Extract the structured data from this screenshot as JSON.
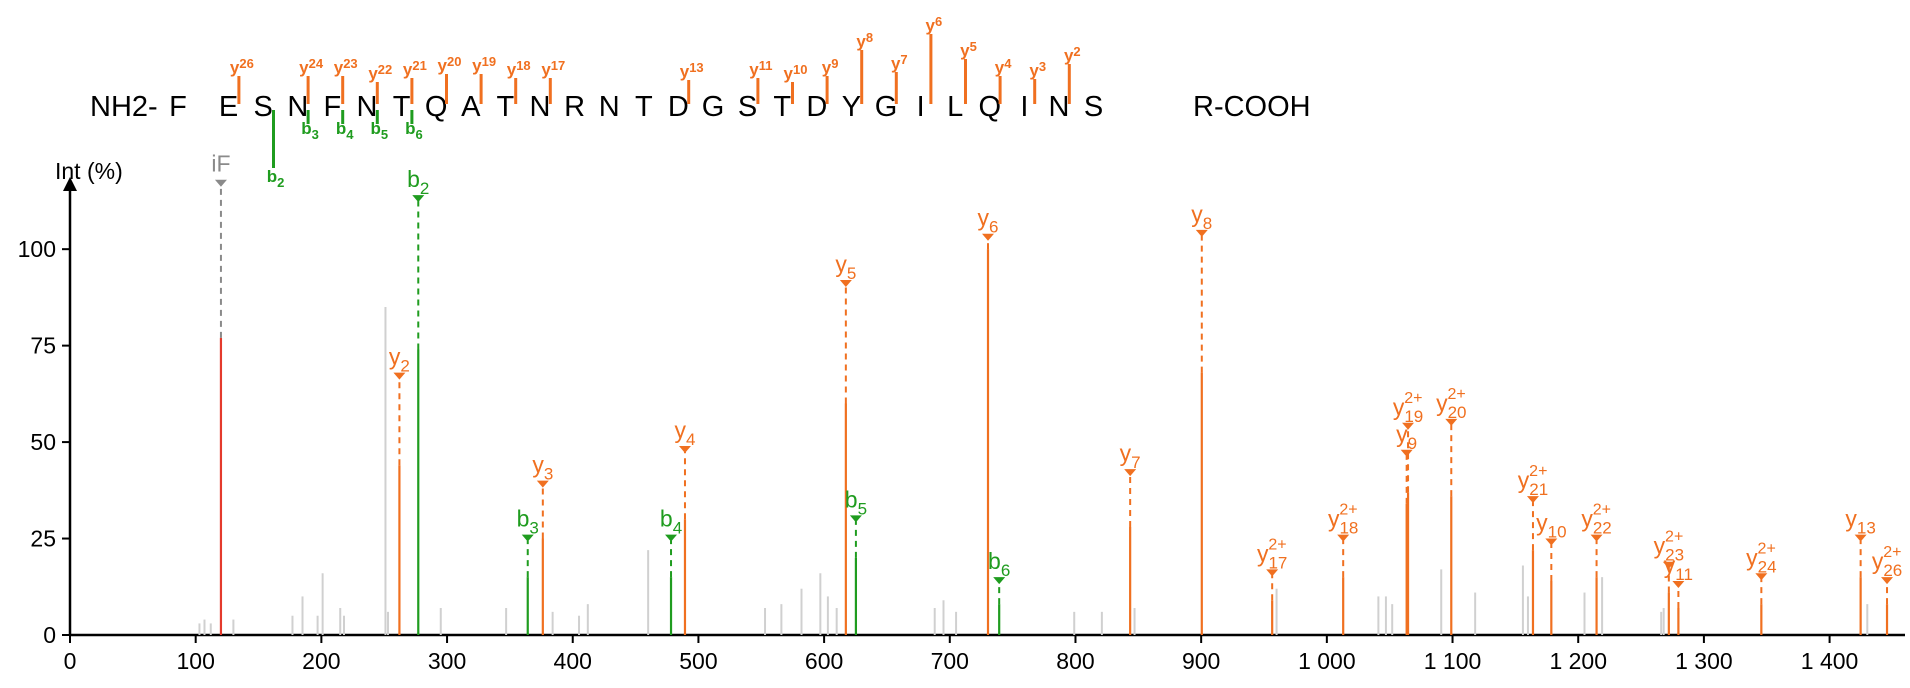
{
  "colors": {
    "y": "#f07020",
    "b": "#1f9c1f",
    "immonium": "#e43a2c",
    "unassigned": "#d0d0d0",
    "axis": "#000000",
    "label_gray": "#8a8a8a"
  },
  "sequence": {
    "n_term": "NH2-",
    "c_term": "R-COOH",
    "residues": [
      "F",
      "E",
      "S",
      "N",
      "F",
      "N",
      "T",
      "Q",
      "A",
      "T",
      "N",
      "R",
      "N",
      "T",
      "D",
      "G",
      "S",
      "T",
      "D",
      "Y",
      "G",
      "I",
      "L",
      "Q",
      "I",
      "N",
      "S"
    ],
    "y_marks": [
      {
        "after": 1,
        "label": "y",
        "n": "26"
      },
      {
        "after": 3,
        "label": "y",
        "n": "24"
      },
      {
        "after": 4,
        "label": "y",
        "n": "23"
      },
      {
        "after": 5,
        "label": "y",
        "n": "22"
      },
      {
        "after": 6,
        "label": "y",
        "n": "21"
      },
      {
        "after": 7,
        "label": "y",
        "n": "20"
      },
      {
        "after": 8,
        "label": "y",
        "n": "19"
      },
      {
        "after": 9,
        "label": "y",
        "n": "18"
      },
      {
        "after": 10,
        "label": "y",
        "n": "17"
      },
      {
        "after": 14,
        "label": "y",
        "n": "13"
      },
      {
        "after": 16,
        "label": "y",
        "n": "11"
      },
      {
        "after": 17,
        "label": "y",
        "n": "10"
      },
      {
        "after": 18,
        "label": "y",
        "n": "9"
      },
      {
        "after": 19,
        "label": "y",
        "n": "8"
      },
      {
        "after": 20,
        "label": "y",
        "n": "7"
      },
      {
        "after": 21,
        "label": "y",
        "n": "6"
      },
      {
        "after": 22,
        "label": "y",
        "n": "5"
      },
      {
        "after": 23,
        "label": "y",
        "n": "4"
      },
      {
        "after": 24,
        "label": "y",
        "n": "3"
      },
      {
        "after": 25,
        "label": "y",
        "n": "2"
      }
    ],
    "b_marks": [
      {
        "after": 2,
        "label": "b",
        "n": "2"
      },
      {
        "after": 3,
        "label": "b",
        "n": "3"
      },
      {
        "after": 4,
        "label": "b",
        "n": "4"
      },
      {
        "after": 5,
        "label": "b",
        "n": "5"
      },
      {
        "after": 6,
        "label": "b",
        "n": "6"
      }
    ]
  },
  "chart_data": {
    "type": "bar",
    "ylabel": "Int (%)",
    "xlim": [
      0,
      1460
    ],
    "ylim": [
      0,
      120
    ],
    "x_ticks": [
      "0",
      "100",
      "200",
      "300",
      "400",
      "500",
      "600",
      "700",
      "800",
      "900",
      "1 000",
      "1 100",
      "1 200",
      "1 300",
      "1 400"
    ],
    "x_tick_values": [
      0,
      100,
      200,
      300,
      400,
      500,
      600,
      700,
      800,
      900,
      1000,
      1100,
      1200,
      1300,
      1400
    ],
    "y_ticks": [
      "0",
      "25",
      "50",
      "75",
      "100"
    ],
    "y_tick_values": [
      0,
      25,
      50,
      75,
      100
    ],
    "assigned_peaks": [
      {
        "series": "immonium",
        "label": "iF",
        "sub": "",
        "sup": "",
        "mz": 120.1,
        "intensity": 77,
        "label_level": 118
      },
      {
        "series": "y",
        "label": "y",
        "sub": "2",
        "sup": "",
        "mz": 262.1,
        "intensity": 44,
        "label_level": 68
      },
      {
        "series": "b",
        "label": "b",
        "sub": "2",
        "sup": "",
        "mz": 277.1,
        "intensity": 74,
        "label_level": 114
      },
      {
        "series": "b",
        "label": "b",
        "sub": "3",
        "sup": "",
        "mz": 364.2,
        "intensity": 15,
        "label_level": 26
      },
      {
        "series": "y",
        "label": "y",
        "sub": "3",
        "sup": "",
        "mz": 376.2,
        "intensity": 25,
        "label_level": 40
      },
      {
        "series": "b",
        "label": "b",
        "sub": "4",
        "sup": "",
        "mz": 478.2,
        "intensity": 15,
        "label_level": 26
      },
      {
        "series": "y",
        "label": "y",
        "sub": "4",
        "sup": "",
        "mz": 489.3,
        "intensity": 30,
        "label_level": 49
      },
      {
        "series": "y",
        "label": "y",
        "sub": "5",
        "sup": "",
        "mz": 617.3,
        "intensity": 60,
        "label_level": 92
      },
      {
        "series": "b",
        "label": "b",
        "sub": "5",
        "sup": "",
        "mz": 625.3,
        "intensity": 20,
        "label_level": 31
      },
      {
        "series": "y",
        "label": "y",
        "sub": "6",
        "sup": "",
        "mz": 730.4,
        "intensity": 100,
        "label_level": 104
      },
      {
        "series": "b",
        "label": "b",
        "sub": "6",
        "sup": "",
        "mz": 739.3,
        "intensity": 8,
        "label_level": 15
      },
      {
        "series": "y",
        "label": "y",
        "sub": "7",
        "sup": "",
        "mz": 843.5,
        "intensity": 28,
        "label_level": 43
      },
      {
        "series": "y",
        "label": "y",
        "sub": "8",
        "sup": "",
        "mz": 900.5,
        "intensity": 68,
        "label_level": 105
      },
      {
        "series": "y",
        "label": "y",
        "sub": "17",
        "sup": "2+",
        "mz": 956.5,
        "intensity": 9,
        "label_level": 17
      },
      {
        "series": "y",
        "label": "y",
        "sub": "18",
        "sup": "2+",
        "mz": 1013.0,
        "intensity": 15,
        "label_level": 26
      },
      {
        "series": "y",
        "label": "y",
        "sub": "9",
        "sup": "",
        "mz": 1063.5,
        "intensity": 34,
        "label_level": 48
      },
      {
        "series": "y",
        "label": "y",
        "sub": "19",
        "sup": "2+",
        "mz": 1064.6,
        "intensity": 37,
        "label_level": 55
      },
      {
        "series": "y",
        "label": "y",
        "sub": "20",
        "sup": "2+",
        "mz": 1099.0,
        "intensity": 36,
        "label_level": 56
      },
      {
        "series": "y",
        "label": "y",
        "sub": "21",
        "sup": "2+",
        "mz": 1164.0,
        "intensity": 22,
        "label_level": 36
      },
      {
        "series": "y",
        "label": "y",
        "sub": "10",
        "sup": "",
        "mz": 1178.6,
        "intensity": 14,
        "label_level": 25
      },
      {
        "series": "y",
        "label": "y",
        "sub": "22",
        "sup": "2+",
        "mz": 1214.6,
        "intensity": 15,
        "label_level": 26
      },
      {
        "series": "y",
        "label": "y",
        "sub": "23",
        "sup": "2+",
        "mz": 1272.1,
        "intensity": 11,
        "label_level": 19
      },
      {
        "series": "y",
        "label": "y",
        "sub": "11",
        "sup": "",
        "mz": 1279.7,
        "intensity": 7,
        "label_level": 14
      },
      {
        "series": "y",
        "label": "y",
        "sub": "24",
        "sup": "2+",
        "mz": 1345.7,
        "intensity": 8,
        "label_level": 16
      },
      {
        "series": "y",
        "label": "y",
        "sub": "13",
        "sup": "",
        "mz": 1424.7,
        "intensity": 15,
        "label_level": 26
      },
      {
        "series": "y",
        "label": "y",
        "sub": "26",
        "sup": "2+",
        "mz": 1445.7,
        "intensity": 8,
        "label_level": 15
      }
    ],
    "unassigned_peaks": [
      {
        "mz": 103,
        "intensity": 3
      },
      {
        "mz": 107,
        "intensity": 4
      },
      {
        "mz": 112,
        "intensity": 3
      },
      {
        "mz": 130,
        "intensity": 4
      },
      {
        "mz": 177,
        "intensity": 5
      },
      {
        "mz": 185,
        "intensity": 10
      },
      {
        "mz": 197,
        "intensity": 5
      },
      {
        "mz": 201,
        "intensity": 16
      },
      {
        "mz": 215,
        "intensity": 7
      },
      {
        "mz": 218,
        "intensity": 5
      },
      {
        "mz": 251,
        "intensity": 85
      },
      {
        "mz": 253,
        "intensity": 6
      },
      {
        "mz": 295,
        "intensity": 7
      },
      {
        "mz": 347,
        "intensity": 7
      },
      {
        "mz": 384,
        "intensity": 6
      },
      {
        "mz": 405,
        "intensity": 5
      },
      {
        "mz": 412,
        "intensity": 8
      },
      {
        "mz": 460,
        "intensity": 22
      },
      {
        "mz": 553,
        "intensity": 7
      },
      {
        "mz": 566,
        "intensity": 8
      },
      {
        "mz": 582,
        "intensity": 12
      },
      {
        "mz": 597,
        "intensity": 16
      },
      {
        "mz": 603,
        "intensity": 10
      },
      {
        "mz": 610,
        "intensity": 7
      },
      {
        "mz": 688,
        "intensity": 7
      },
      {
        "mz": 695,
        "intensity": 9
      },
      {
        "mz": 705,
        "intensity": 6
      },
      {
        "mz": 799,
        "intensity": 6
      },
      {
        "mz": 821,
        "intensity": 6
      },
      {
        "mz": 847,
        "intensity": 7
      },
      {
        "mz": 960,
        "intensity": 12
      },
      {
        "mz": 1041,
        "intensity": 10
      },
      {
        "mz": 1047,
        "intensity": 10
      },
      {
        "mz": 1052,
        "intensity": 8
      },
      {
        "mz": 1091,
        "intensity": 17
      },
      {
        "mz": 1118,
        "intensity": 11
      },
      {
        "mz": 1156,
        "intensity": 18
      },
      {
        "mz": 1160,
        "intensity": 10
      },
      {
        "mz": 1205,
        "intensity": 11
      },
      {
        "mz": 1219,
        "intensity": 15
      },
      {
        "mz": 1266,
        "intensity": 6
      },
      {
        "mz": 1268,
        "intensity": 7
      },
      {
        "mz": 1430,
        "intensity": 8
      }
    ]
  }
}
